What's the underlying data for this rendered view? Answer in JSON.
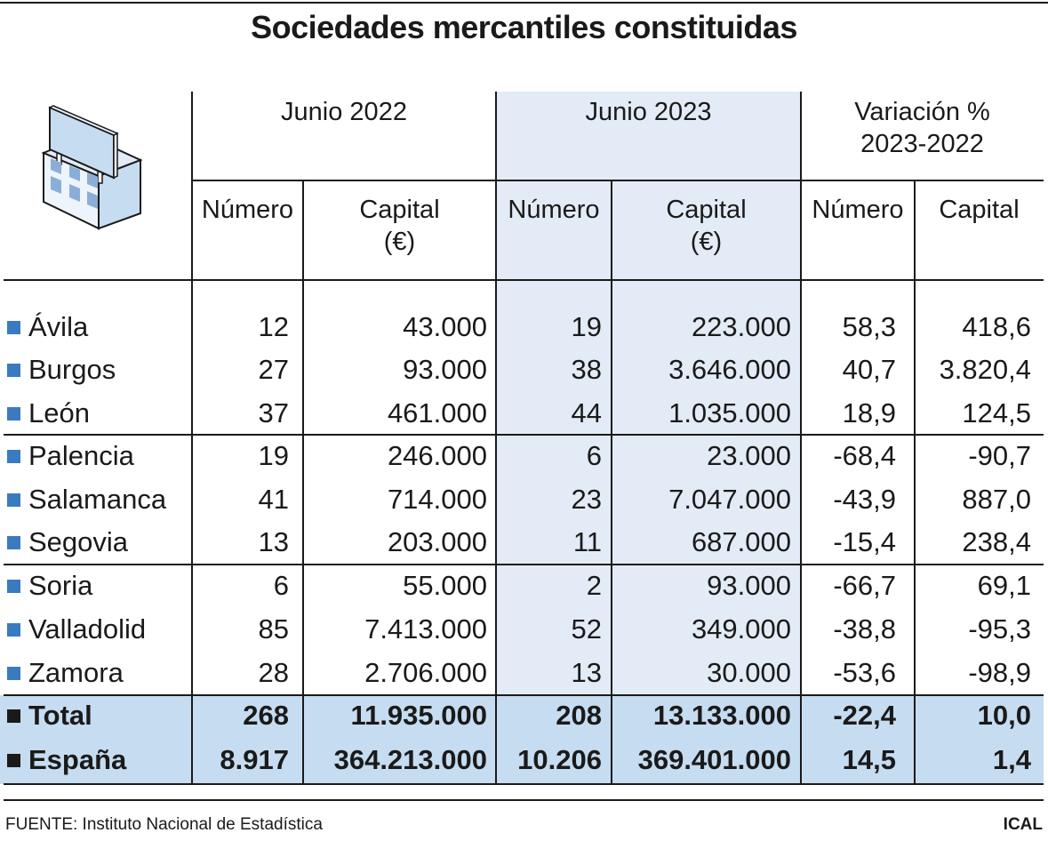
{
  "title": "Sociedades mercantiles constituidas",
  "colors": {
    "accent_square": "#3a7bbf",
    "shade_2023": "#e3ebf6",
    "total_band": "#c6dcf0",
    "line": "#1a1a1a"
  },
  "icon": "office-building-with-sign-icon",
  "chart_data": {
    "type": "table",
    "title": "Sociedades mercantiles constituidas",
    "group_headers": [
      "Junio 2022",
      "Junio 2023",
      "Variación % 2023-2022"
    ],
    "columns": [
      "Número",
      "Capital (€)",
      "Número",
      "Capital (€)",
      "Número",
      "Capital"
    ],
    "rows": [
      {
        "label": "Ávila",
        "values": [
          "12",
          "43.000",
          "19",
          "223.000",
          "58,3",
          "418,6"
        ]
      },
      {
        "label": "Burgos",
        "values": [
          "27",
          "93.000",
          "38",
          "3.646.000",
          "40,7",
          "3.820,4"
        ]
      },
      {
        "label": "León",
        "values": [
          "37",
          "461.000",
          "44",
          "1.035.000",
          "18,9",
          "124,5"
        ]
      },
      {
        "label": "Palencia",
        "values": [
          "19",
          "246.000",
          "6",
          "23.000",
          "-68,4",
          "-90,7"
        ]
      },
      {
        "label": "Salamanca",
        "values": [
          "41",
          "714.000",
          "23",
          "7.047.000",
          "-43,9",
          "887,0"
        ]
      },
      {
        "label": "Segovia",
        "values": [
          "13",
          "203.000",
          "11",
          "687.000",
          "-15,4",
          "238,4"
        ]
      },
      {
        "label": "Soria",
        "values": [
          "6",
          "55.000",
          "2",
          "93.000",
          "-66,7",
          "69,1"
        ]
      },
      {
        "label": "Valladolid",
        "values": [
          "85",
          "7.413.000",
          "52",
          "349.000",
          "-38,8",
          "-95,3"
        ]
      },
      {
        "label": "Zamora",
        "values": [
          "28",
          "2.706.000",
          "13",
          "30.000",
          "-53,6",
          "-98,9"
        ]
      },
      {
        "label": "Total",
        "values": [
          "268",
          "11.935.000",
          "208",
          "13.133.000",
          "-22,4",
          "10,0"
        ],
        "bold": true
      },
      {
        "label": "España",
        "values": [
          "8.917",
          "364.213.000",
          "10.206",
          "369.401.000",
          "14,5",
          "1,4"
        ],
        "bold": true
      }
    ]
  },
  "headers": {
    "g1": "Junio 2022",
    "g2": "Junio 2023",
    "g3_line1": "Variación %",
    "g3_line2": "2023-2022",
    "numero": "Número",
    "capital": "Capital",
    "euro": "(€)"
  },
  "footer": {
    "source": "FUENTE: Instituto Nacional de Estadística",
    "brand": "ICAL"
  }
}
